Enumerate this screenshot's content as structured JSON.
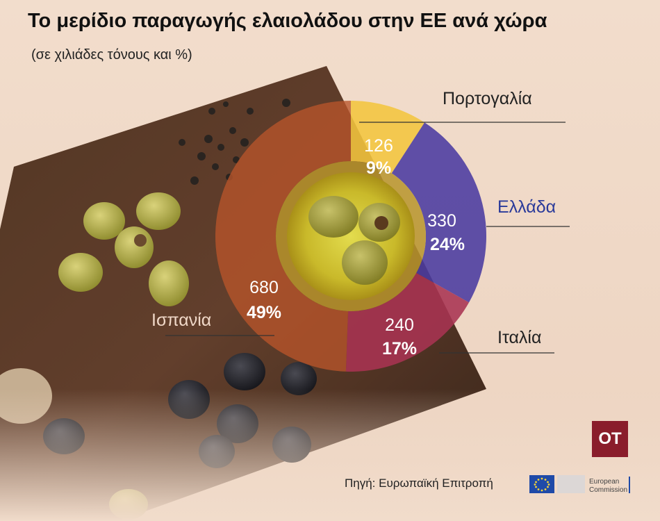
{
  "title": "Το μερίδιο παραγωγής ελαιολάδου στην ΕΕ ανά χώρα",
  "subtitle": "(σε χιλιάδες τόνους και %)",
  "source": "Πηγή: Ευρωπαϊκή Επιτροπή",
  "logo_text": "OT",
  "ec_logo_text": [
    "European",
    "Commission"
  ],
  "colors": {
    "Πορτογαλία": "#f2c53d",
    "Ελλάδα": "#4a3aa0",
    "Ιταλία": "#a83352",
    "Ισπανία": "#b8552a",
    "greece_label": "#2a3a9a",
    "label": "#222222"
  },
  "chart_data": {
    "type": "pie",
    "style": "donut",
    "title": "Το μερίδιο παραγωγής ελαιολάδου στην ΕΕ ανά χώρα",
    "subtitle": "(σε χιλιάδες τόνους και %)",
    "unit": "χιλιάδες τόνοι",
    "slices": [
      {
        "label": "Πορτογαλία",
        "value": 126,
        "value_label": "126",
        "percent": 9,
        "percent_label": "9%"
      },
      {
        "label": "Ελλάδα",
        "value": 330,
        "value_label": "330",
        "percent": 24,
        "percent_label": "24%"
      },
      {
        "label": "Ιταλία",
        "value": 240,
        "value_label": "240",
        "percent": 17,
        "percent_label": "17%"
      },
      {
        "label": "Ισπανία",
        "value": 680,
        "value_label": "680",
        "percent": 49,
        "percent_label": "49%"
      }
    ]
  }
}
